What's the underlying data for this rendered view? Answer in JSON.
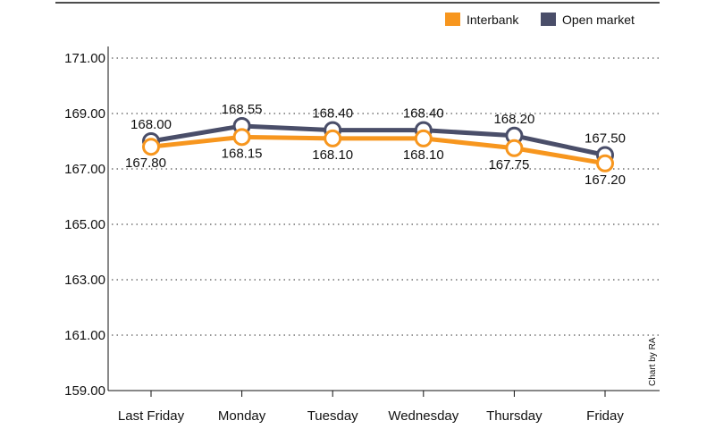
{
  "chart_data": {
    "type": "line",
    "categories": [
      "Last Friday",
      "Monday",
      "Tuesday",
      "Wednesday",
      "Thursday",
      "Friday"
    ],
    "series": [
      {
        "name": "Interbank",
        "color": "#f7961e",
        "values": [
          167.8,
          168.15,
          168.1,
          168.1,
          167.75,
          167.2
        ],
        "labels": [
          "167.80",
          "168.15",
          "168.10",
          "168.10",
          "167.75",
          "167.20"
        ],
        "label_position": "below"
      },
      {
        "name": "Open market",
        "color": "#4a4e69",
        "values": [
          168.0,
          168.55,
          168.4,
          168.4,
          168.2,
          167.5
        ],
        "labels": [
          "168.00",
          "168.55",
          "168.40",
          "168.40",
          "168.20",
          "167.50"
        ],
        "label_position": "above"
      }
    ],
    "ylim": [
      159.0,
      171.0
    ],
    "yticks": [
      "159.00",
      "161.00",
      "163.00",
      "165.00",
      "167.00",
      "169.00",
      "171.00"
    ],
    "grid": "horizontal dotted",
    "legend_position": "top-right",
    "credit": "Chart by RA"
  }
}
